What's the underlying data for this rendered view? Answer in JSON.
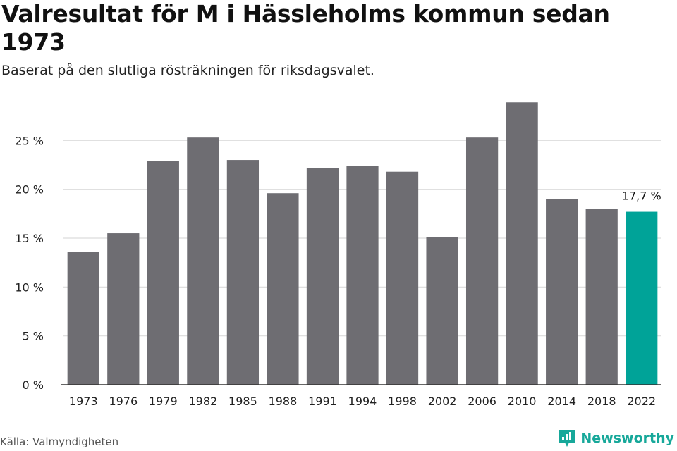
{
  "header": {
    "title": "Valresultat för M i Hässleholms kommun sedan 1973",
    "subtitle": "Baserat på den slutliga rösträkningen för riksdagsvalet."
  },
  "footer": {
    "source": "Källa: Valmyndigheten",
    "brand": "Newsworthy",
    "brand_icon": "newsworthy-logo-icon"
  },
  "colors": {
    "bar": "#6e6d72",
    "highlight": "#00a398",
    "grid": "#dcdcdc",
    "axis": "#333333",
    "brand": "#17a89a"
  },
  "chart_data": {
    "type": "bar",
    "categories": [
      "1973",
      "1976",
      "1979",
      "1982",
      "1985",
      "1988",
      "1991",
      "1994",
      "1998",
      "2002",
      "2006",
      "2010",
      "2014",
      "2018",
      "2022"
    ],
    "values": [
      13.6,
      15.5,
      22.9,
      25.3,
      23.0,
      19.6,
      22.2,
      22.4,
      21.8,
      15.1,
      25.3,
      28.9,
      19.0,
      18.0,
      17.7
    ],
    "yticks": [
      0,
      5,
      10,
      15,
      20,
      25
    ],
    "ytick_labels": [
      "0 %",
      "5 %",
      "10 %",
      "15 %",
      "20 %",
      "25 %"
    ],
    "ylim": [
      0,
      30
    ],
    "highlight_index": 14,
    "data_labels": [
      {
        "index": 14,
        "text": "17,7 %"
      }
    ],
    "title": "Valresultat för M i Hässleholms kommun sedan 1973",
    "xlabel": "",
    "ylabel": "",
    "grid": true
  }
}
